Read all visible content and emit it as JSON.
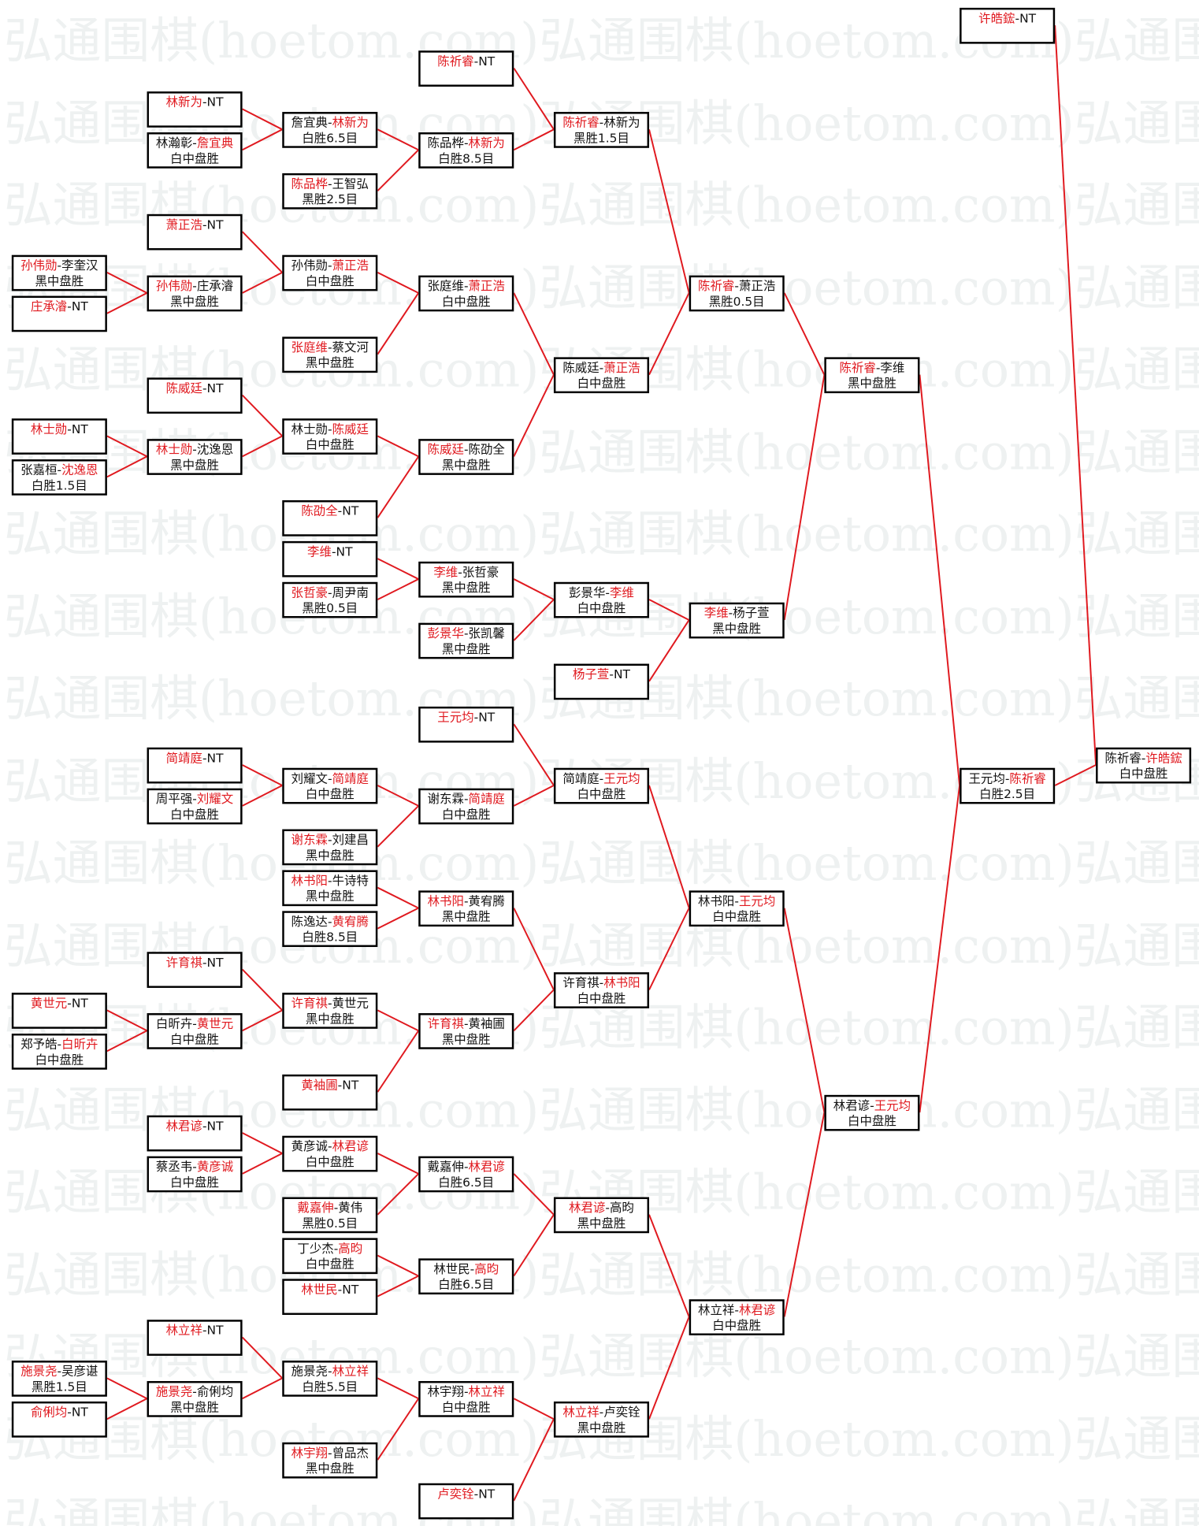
{
  "watermark": "弘通围棋(hoetom.com)",
  "colors": {
    "winner": "#e0191f",
    "line": "#e0191f",
    "border": "#000000"
  },
  "columns": [
    [
      {
        "a": "孙伟勋",
        "b": "李奎汉",
        "win": "a",
        "result": "黑中盘胜"
      },
      {
        "a": "庄承濬",
        "b": "NT",
        "win": "a",
        "result": ""
      },
      {
        "a": "林士勋",
        "b": "NT",
        "win": "a",
        "result": ""
      },
      {
        "a": "张嘉桓",
        "b": "沈逸恩",
        "win": "b",
        "result": "白胜1.5目"
      },
      {
        "a": "黄世元",
        "b": "NT",
        "win": "a",
        "result": ""
      },
      {
        "a": "郑予皓",
        "b": "白昕卉",
        "win": "b",
        "result": "白中盘胜"
      },
      {
        "a": "施景尧",
        "b": "吴彦谌",
        "win": "a",
        "result": "黑胜1.5目"
      },
      {
        "a": "俞俐均",
        "b": "NT",
        "win": "a",
        "result": ""
      }
    ],
    [
      {
        "a": "林新为",
        "b": "NT",
        "win": "a",
        "result": ""
      },
      {
        "a": "林瀚彰",
        "b": "詹宜典",
        "win": "b",
        "result": "白中盘胜"
      },
      {
        "a": "萧正浩",
        "b": "NT",
        "win": "a",
        "result": ""
      },
      {
        "a": "孙伟勋",
        "b": "庄承濬",
        "win": "a",
        "result": "黑中盘胜"
      },
      {
        "a": "陈威廷",
        "b": "NT",
        "win": "a",
        "result": ""
      },
      {
        "a": "林士勋",
        "b": "沈逸恩",
        "win": "a",
        "result": "黑中盘胜"
      },
      {
        "a": "简靖庭",
        "b": "NT",
        "win": "a",
        "result": ""
      },
      {
        "a": "周平强",
        "b": "刘耀文",
        "win": "b",
        "result": "白中盘胜"
      },
      {
        "a": "许育祺",
        "b": "NT",
        "win": "a",
        "result": ""
      },
      {
        "a": "白昕卉",
        "b": "黄世元",
        "win": "b",
        "result": "白中盘胜"
      },
      {
        "a": "林君谚",
        "b": "NT",
        "win": "a",
        "result": ""
      },
      {
        "a": "蔡丞韦",
        "b": "黄彦诚",
        "win": "b",
        "result": "白中盘胜"
      },
      {
        "a": "林立祥",
        "b": "NT",
        "win": "a",
        "result": ""
      },
      {
        "a": "施景尧",
        "b": "俞俐均",
        "win": "a",
        "result": "黑中盘胜"
      }
    ],
    [
      {
        "a": "詹宜典",
        "b": "林新为",
        "win": "b",
        "result": "白胜6.5目"
      },
      {
        "a": "陈品桦",
        "b": "王智弘",
        "win": "a",
        "result": "黑胜2.5目"
      },
      {
        "a": "孙伟勋",
        "b": "萧正浩",
        "win": "b",
        "result": "白中盘胜"
      },
      {
        "a": "张庭维",
        "b": "蔡文河",
        "win": "a",
        "result": "黑中盘胜"
      },
      {
        "a": "林士勋",
        "b": "陈威廷",
        "win": "b",
        "result": "白中盘胜"
      },
      {
        "a": "陈劭全",
        "b": "NT",
        "win": "a",
        "result": ""
      },
      {
        "a": "李维",
        "b": "NT",
        "win": "a",
        "result": ""
      },
      {
        "a": "张哲豪",
        "b": "周尹南",
        "win": "a",
        "result": "黑胜0.5目"
      },
      {
        "a": "刘耀文",
        "b": "简靖庭",
        "win": "b",
        "result": "白中盘胜"
      },
      {
        "a": "谢东霖",
        "b": "刘建昌",
        "win": "a",
        "result": "黑中盘胜"
      },
      {
        "a": "林书阳",
        "b": "牛诗特",
        "win": "a",
        "result": "黑中盘胜"
      },
      {
        "a": "陈逸达",
        "b": "黄宥腾",
        "win": "b",
        "result": "白胜8.5目"
      },
      {
        "a": "许育祺",
        "b": "黄世元",
        "win": "a",
        "result": "黑中盘胜"
      },
      {
        "a": "黄袖圃",
        "b": "NT",
        "win": "a",
        "result": ""
      },
      {
        "a": "黄彦诚",
        "b": "林君谚",
        "win": "b",
        "result": "白中盘胜"
      },
      {
        "a": "戴嘉伸",
        "b": "黄伟",
        "win": "a",
        "result": "黑胜0.5目"
      },
      {
        "a": "丁少杰",
        "b": "高昀",
        "win": "b",
        "result": "白中盘胜"
      },
      {
        "a": "林世民",
        "b": "NT",
        "win": "a",
        "result": ""
      },
      {
        "a": "施景尧",
        "b": "林立祥",
        "win": "b",
        "result": "白胜5.5目"
      },
      {
        "a": "林宇翔",
        "b": "曾品杰",
        "win": "a",
        "result": "黑中盘胜"
      }
    ],
    [
      {
        "a": "陈祈睿",
        "b": "NT",
        "win": "a",
        "result": ""
      },
      {
        "a": "陈品桦",
        "b": "林新为",
        "win": "b",
        "result": "白胜8.5目"
      },
      {
        "a": "张庭维",
        "b": "萧正浩",
        "win": "b",
        "result": "白中盘胜"
      },
      {
        "a": "陈威廷",
        "b": "陈劭全",
        "win": "a",
        "result": "黑中盘胜"
      },
      {
        "a": "李维",
        "b": "张哲豪",
        "win": "a",
        "result": "黑中盘胜"
      },
      {
        "a": "彭景华",
        "b": "张凯馨",
        "win": "a",
        "result": "黑中盘胜"
      },
      {
        "a": "王元均",
        "b": "NT",
        "win": "a",
        "result": ""
      },
      {
        "a": "谢东霖",
        "b": "简靖庭",
        "win": "b",
        "result": "白中盘胜"
      },
      {
        "a": "林书阳",
        "b": "黄宥腾",
        "win": "a",
        "result": "黑中盘胜"
      },
      {
        "a": "许育祺",
        "b": "黄袖圃",
        "win": "a",
        "result": "黑中盘胜"
      },
      {
        "a": "戴嘉伸",
        "b": "林君谚",
        "win": "b",
        "result": "白胜6.5目"
      },
      {
        "a": "林世民",
        "b": "高昀",
        "win": "b",
        "result": "白胜6.5目"
      },
      {
        "a": "林宇翔",
        "b": "林立祥",
        "win": "b",
        "result": "白中盘胜"
      },
      {
        "a": "卢奕铨",
        "b": "NT",
        "win": "a",
        "result": ""
      }
    ],
    [
      {
        "a": "陈祈睿",
        "b": "林新为",
        "win": "a",
        "result": "黑胜1.5目"
      },
      {
        "a": "陈威廷",
        "b": "萧正浩",
        "win": "b",
        "result": "白中盘胜"
      },
      {
        "a": "彭景华",
        "b": "李维",
        "win": "b",
        "result": "白中盘胜"
      },
      {
        "a": "杨子萱",
        "b": "NT",
        "win": "a",
        "result": ""
      },
      {
        "a": "简靖庭",
        "b": "王元均",
        "win": "b",
        "result": "白中盘胜"
      },
      {
        "a": "许育祺",
        "b": "林书阳",
        "win": "b",
        "result": "白中盘胜"
      },
      {
        "a": "林君谚",
        "b": "高昀",
        "win": "a",
        "result": "黑中盘胜"
      },
      {
        "a": "林立祥",
        "b": "卢奕铨",
        "win": "a",
        "result": "黑中盘胜"
      }
    ],
    [
      {
        "a": "陈祈睿",
        "b": "萧正浩",
        "win": "a",
        "result": "黑胜0.5目"
      },
      {
        "a": "李维",
        "b": "杨子萱",
        "win": "a",
        "result": "黑中盘胜"
      },
      {
        "a": "林书阳",
        "b": "王元均",
        "win": "b",
        "result": "白中盘胜"
      },
      {
        "a": "林立祥",
        "b": "林君谚",
        "win": "b",
        "result": "白中盘胜"
      }
    ],
    [
      {
        "a": "陈祈睿",
        "b": "李维",
        "win": "a",
        "result": "黑中盘胜"
      },
      {
        "a": "林君谚",
        "b": "王元均",
        "win": "b",
        "result": "白中盘胜"
      }
    ],
    [
      {
        "a": "许皓鋐",
        "b": "NT",
        "win": "a",
        "result": ""
      },
      {
        "a": "王元均",
        "b": "陈祈睿",
        "win": "b",
        "result": "白胜2.5目"
      }
    ],
    [
      {
        "a": "陈祈睿",
        "b": "许皓鋐",
        "win": "b",
        "result": "白中盘胜"
      }
    ]
  ]
}
